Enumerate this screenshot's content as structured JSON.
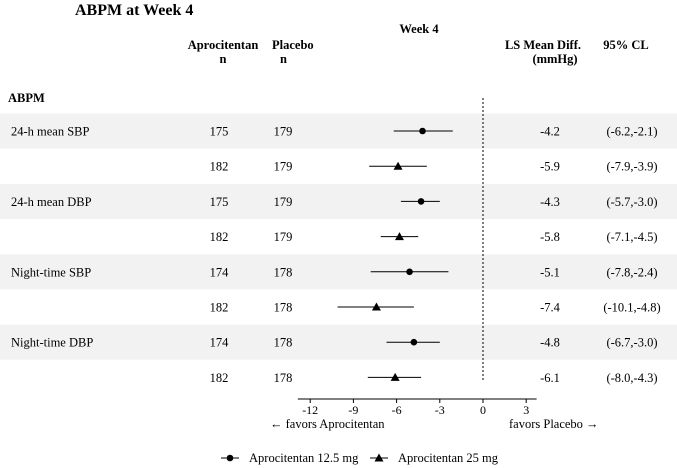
{
  "chart_data": {
    "type": "forest",
    "title": "ABPM at Week 4",
    "panel_title": "Week 4",
    "columns": {
      "apro_n": [
        "Aprocitentan",
        "n"
      ],
      "placebo_n": [
        "Placebo",
        "n"
      ],
      "ls_mean": [
        "LS Mean Diff.",
        "(mmHg)"
      ],
      "ci": [
        "95% CL"
      ]
    },
    "section_label": "ABPM",
    "rows": [
      {
        "label": "24-h mean SBP",
        "dose": "Aprocitentan 12.5 mg",
        "apro_n": "175",
        "placebo_n": "179",
        "est": -4.2,
        "lo": -6.2,
        "hi": -2.1,
        "est_text": "-4.2",
        "ci_text": "(-6.2,-2.1)",
        "shaded": true
      },
      {
        "label": "",
        "dose": "Aprocitentan 25 mg",
        "apro_n": "182",
        "placebo_n": "179",
        "est": -5.9,
        "lo": -7.9,
        "hi": -3.9,
        "est_text": "-5.9",
        "ci_text": "(-7.9,-3.9)",
        "shaded": false
      },
      {
        "label": "24-h mean DBP",
        "dose": "Aprocitentan 12.5 mg",
        "apro_n": "175",
        "placebo_n": "179",
        "est": -4.3,
        "lo": -5.7,
        "hi": -3.0,
        "est_text": "-4.3",
        "ci_text": "(-5.7,-3.0)",
        "shaded": true
      },
      {
        "label": "",
        "dose": "Aprocitentan 25 mg",
        "apro_n": "182",
        "placebo_n": "179",
        "est": -5.8,
        "lo": -7.1,
        "hi": -4.5,
        "est_text": "-5.8",
        "ci_text": "(-7.1,-4.5)",
        "shaded": false
      },
      {
        "label": "Night-time SBP",
        "dose": "Aprocitentan 12.5 mg",
        "apro_n": "174",
        "placebo_n": "178",
        "est": -5.1,
        "lo": -7.8,
        "hi": -2.4,
        "est_text": "-5.1",
        "ci_text": "(-7.8,-2.4)",
        "shaded": true
      },
      {
        "label": "",
        "dose": "Aprocitentan 25 mg",
        "apro_n": "182",
        "placebo_n": "178",
        "est": -7.4,
        "lo": -10.1,
        "hi": -4.8,
        "est_text": "-7.4",
        "ci_text": "(-10.1,-4.8)",
        "shaded": false
      },
      {
        "label": "Night-time DBP",
        "dose": "Aprocitentan 12.5 mg",
        "apro_n": "174",
        "placebo_n": "178",
        "est": -4.8,
        "lo": -6.7,
        "hi": -3.0,
        "est_text": "-4.8",
        "ci_text": "(-6.7,-3.0)",
        "shaded": true
      },
      {
        "label": "",
        "dose": "Aprocitentan 25 mg",
        "apro_n": "182",
        "placebo_n": "178",
        "est": -6.1,
        "lo": -8.0,
        "hi": -4.3,
        "est_text": "-6.1",
        "ci_text": "(-8.0,-4.3)",
        "shaded": false
      }
    ],
    "xlim": [
      -13,
      4
    ],
    "x_ticks": [
      -12,
      -9,
      -6,
      -3,
      0,
      3
    ],
    "x_tick_labels": [
      "-12",
      "-9",
      "-6",
      "-3",
      "0",
      "3"
    ],
    "reference_line": 0,
    "favors_left": "← favors Aprocitentan",
    "favors_right": "favors Placebo →",
    "legend": [
      {
        "name": "Aprocitentan 12.5 mg",
        "marker": "circle"
      },
      {
        "name": "Aprocitentan 25 mg",
        "marker": "triangle"
      }
    ],
    "legend_position": "bottom",
    "colors": {
      "shade": "#f2f2f2",
      "mark": "#000000"
    }
  }
}
